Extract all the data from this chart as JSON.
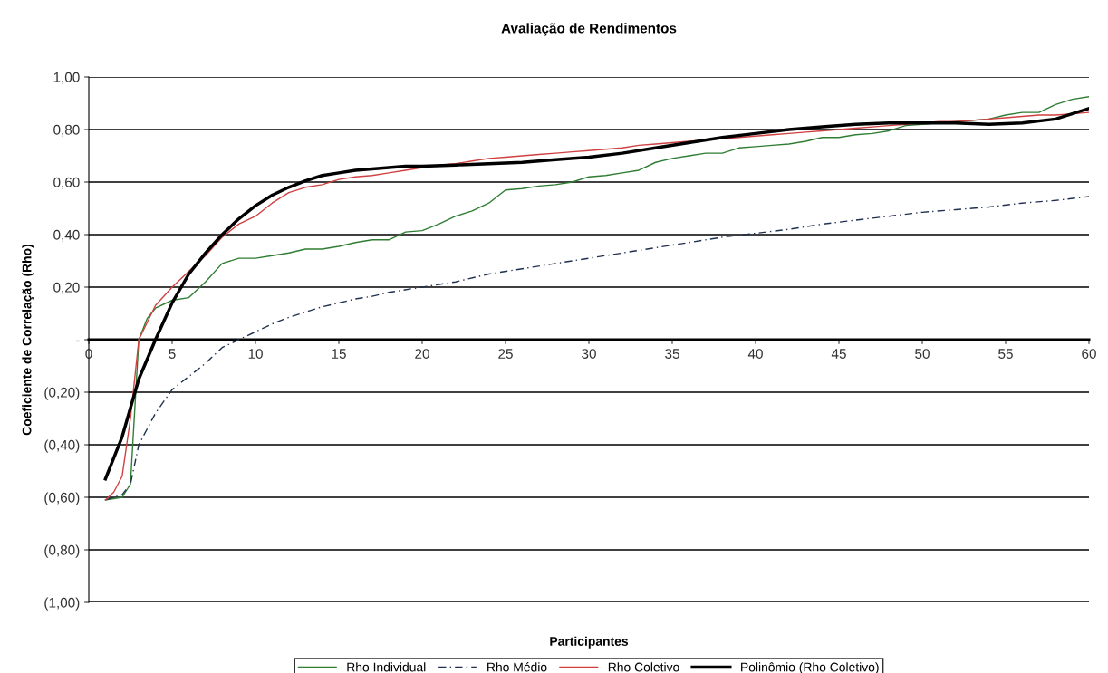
{
  "chart_data": {
    "type": "line",
    "title": "Avaliação de Rendimentos",
    "xlabel": "Participantes",
    "ylabel": "Coeficiente de Correlação (Rho)",
    "xlim": [
      0,
      60
    ],
    "xticks": [
      0,
      5,
      10,
      15,
      20,
      25,
      30,
      35,
      40,
      45,
      50,
      55,
      60
    ],
    "ylim": [
      -1,
      1
    ],
    "yticks": [
      {
        "value": -1,
        "label": "(1,00)"
      },
      {
        "value": -0.8,
        "label": "(0,80)"
      },
      {
        "value": -0.6,
        "label": "(0,60)"
      },
      {
        "value": -0.4,
        "label": "(0,40)"
      },
      {
        "value": -0.2,
        "label": "(0,20)"
      },
      {
        "value": 0,
        "label": "-"
      },
      {
        "value": 0.2,
        "label": "0,20"
      },
      {
        "value": 0.4,
        "label": "0,40"
      },
      {
        "value": 0.6,
        "label": "0,60"
      },
      {
        "value": 0.8,
        "label": "0,80"
      },
      {
        "value": 1,
        "label": "1,00"
      }
    ],
    "grid": "y",
    "legend": "bottom",
    "marker": "none",
    "series": [
      {
        "name": "Rho Individual",
        "color": "#2f7d32",
        "line_style": "solid",
        "x": [
          1,
          2,
          2.5,
          3,
          3.5,
          4,
          5,
          6,
          7,
          8,
          9,
          10,
          11,
          12,
          13,
          14,
          15,
          16,
          17,
          18,
          19,
          20,
          21,
          22,
          23,
          24,
          25,
          26,
          27,
          28,
          29,
          30,
          31,
          32,
          33,
          34,
          35,
          36,
          37,
          38,
          39,
          40,
          41,
          42,
          43,
          44,
          45,
          46,
          47,
          48,
          49,
          50,
          51,
          52,
          53,
          54,
          55,
          56,
          57,
          58,
          59,
          60
        ],
        "values": [
          -0.61,
          -0.6,
          -0.55,
          0.0,
          0.08,
          0.12,
          0.15,
          0.16,
          0.22,
          0.29,
          0.31,
          0.31,
          0.32,
          0.33,
          0.345,
          0.345,
          0.355,
          0.37,
          0.38,
          0.38,
          0.41,
          0.415,
          0.44,
          0.47,
          0.49,
          0.52,
          0.57,
          0.575,
          0.585,
          0.59,
          0.6,
          0.62,
          0.625,
          0.635,
          0.645,
          0.675,
          0.69,
          0.7,
          0.71,
          0.71,
          0.73,
          0.735,
          0.74,
          0.745,
          0.755,
          0.77,
          0.77,
          0.78,
          0.785,
          0.795,
          0.815,
          0.82,
          0.825,
          0.83,
          0.835,
          0.84,
          0.855,
          0.865,
          0.865,
          0.895,
          0.915,
          0.925
        ]
      },
      {
        "name": "Rho Médio",
        "color": "#1f3050",
        "line_style": "dashed",
        "x": [
          1,
          2,
          2.5,
          3,
          4,
          5,
          6,
          7,
          8,
          9,
          10,
          11,
          12,
          13,
          14,
          15,
          16,
          17,
          18,
          20,
          22,
          24,
          26,
          28,
          30,
          32,
          34,
          36,
          38,
          40,
          42,
          44,
          46,
          48,
          50,
          52,
          54,
          56,
          58,
          60
        ],
        "values": [
          -0.61,
          -0.59,
          -0.55,
          -0.4,
          -0.28,
          -0.19,
          -0.14,
          -0.09,
          -0.03,
          0.0,
          0.03,
          0.06,
          0.085,
          0.105,
          0.125,
          0.14,
          0.155,
          0.165,
          0.18,
          0.2,
          0.22,
          0.25,
          0.27,
          0.29,
          0.31,
          0.33,
          0.35,
          0.37,
          0.39,
          0.405,
          0.42,
          0.44,
          0.455,
          0.47,
          0.485,
          0.495,
          0.505,
          0.52,
          0.53,
          0.545
        ]
      },
      {
        "name": "Rho Coletivo",
        "color": "#d04040",
        "line_style": "solid",
        "x": [
          1,
          1.5,
          2,
          2.5,
          3,
          4,
          5,
          6,
          7,
          8,
          9,
          10,
          11,
          12,
          13,
          14,
          15,
          16,
          17,
          18,
          19,
          20,
          21,
          22,
          23,
          24,
          25,
          26,
          27,
          28,
          29,
          30,
          31,
          32,
          33,
          34,
          35,
          36,
          37,
          38,
          39,
          40,
          41,
          42,
          43,
          44,
          45,
          46,
          47,
          48,
          49,
          50,
          51,
          52,
          53,
          54,
          55,
          56,
          57,
          58,
          59,
          60
        ],
        "values": [
          -0.61,
          -0.58,
          -0.52,
          -0.3,
          0.0,
          0.13,
          0.2,
          0.26,
          0.32,
          0.39,
          0.44,
          0.47,
          0.52,
          0.56,
          0.58,
          0.59,
          0.61,
          0.62,
          0.625,
          0.635,
          0.645,
          0.655,
          0.665,
          0.67,
          0.68,
          0.69,
          0.695,
          0.7,
          0.705,
          0.71,
          0.715,
          0.72,
          0.725,
          0.73,
          0.74,
          0.745,
          0.75,
          0.755,
          0.76,
          0.765,
          0.77,
          0.775,
          0.78,
          0.785,
          0.79,
          0.795,
          0.8,
          0.805,
          0.81,
          0.815,
          0.82,
          0.825,
          0.83,
          0.83,
          0.835,
          0.84,
          0.845,
          0.85,
          0.855,
          0.855,
          0.86,
          0.865
        ]
      },
      {
        "name": "Polinômio (Rho Coletivo)",
        "color": "#000000",
        "line_style": "solid",
        "x": [
          1,
          2,
          3,
          4,
          5,
          6,
          7,
          8,
          9,
          10,
          11,
          12,
          13,
          14,
          15,
          16,
          17,
          18,
          19,
          20,
          22,
          24,
          26,
          28,
          30,
          32,
          34,
          36,
          38,
          40,
          42,
          44,
          46,
          48,
          50,
          52,
          54,
          56,
          58,
          60
        ],
        "values": [
          -0.53,
          -0.37,
          -0.15,
          0.0,
          0.14,
          0.25,
          0.33,
          0.4,
          0.46,
          0.51,
          0.55,
          0.58,
          0.605,
          0.625,
          0.635,
          0.645,
          0.65,
          0.655,
          0.66,
          0.66,
          0.665,
          0.67,
          0.675,
          0.685,
          0.695,
          0.71,
          0.73,
          0.75,
          0.77,
          0.785,
          0.8,
          0.81,
          0.82,
          0.825,
          0.825,
          0.825,
          0.82,
          0.825,
          0.84,
          0.88
        ]
      }
    ]
  }
}
